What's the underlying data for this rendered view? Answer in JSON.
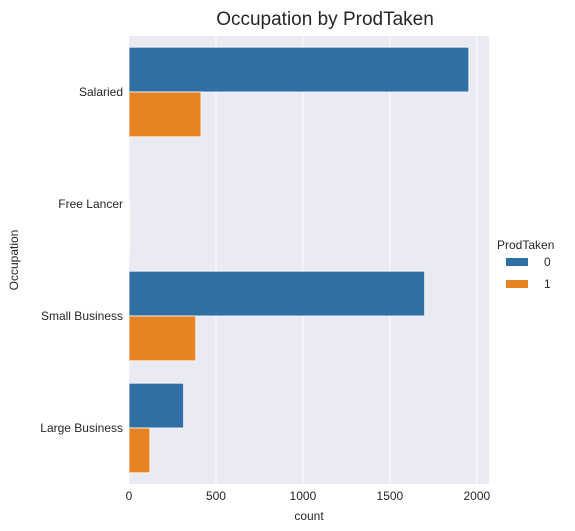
{
  "chart_data": {
    "type": "bar",
    "orientation": "horizontal",
    "title": "Occupation by ProdTaken",
    "xlabel": "count",
    "ylabel": "Occupation",
    "categories": [
      "Salaried",
      "Free Lancer",
      "Small Business",
      "Large Business"
    ],
    "series": [
      {
        "name": "0",
        "values": [
          1954,
          0,
          1700,
          314
        ],
        "color": "#2f6fa3"
      },
      {
        "name": "1",
        "values": [
          414,
          2,
          384,
          120
        ],
        "color": "#e88323"
      }
    ],
    "xlim": [
      0,
      2070
    ],
    "xticks": [
      0,
      500,
      1000,
      1500,
      2000
    ],
    "grid": true,
    "legend": {
      "title": "ProdTaken",
      "placement": "right",
      "entries": [
        "0",
        "1"
      ]
    },
    "background_color": "#eaeaf2",
    "grid_color": "#ffffff"
  }
}
